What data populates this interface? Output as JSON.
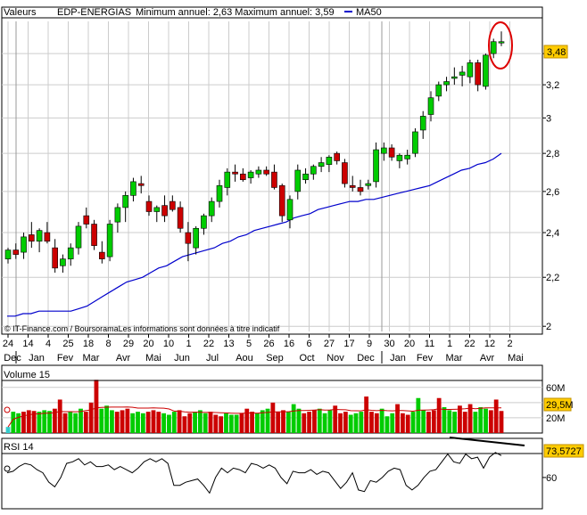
{
  "header": {
    "label": "Valeurs",
    "symbol": "EDP-ENERGIAS",
    "range_text": "Minimum annuel: 2,63 Maximum annuel: 3,59",
    "ma_label": "MA50",
    "ma_color": "#0000cc",
    "credit": "© IT-Finance.com / BoursoramaLes informations sont données à titre indicatif"
  },
  "price_axis": {
    "ticks": [
      "3,4",
      "3,2",
      "3",
      "2,8",
      "2,6",
      "2,4",
      "2,2",
      "2"
    ],
    "last_value": "3,48",
    "last_value_bg": "#ffcc00"
  },
  "x_axis": {
    "days": [
      "24",
      "14",
      "4",
      "25",
      "18",
      "8",
      "29",
      "20",
      "10",
      "1",
      "22",
      "13",
      "5",
      "26",
      "16",
      "6",
      "27",
      "17",
      "9",
      "30",
      "20",
      "11",
      "1",
      "22",
      "12",
      "2"
    ],
    "months": [
      "Dec",
      "Jan",
      "Fev",
      "Mar",
      "Avr",
      "Mai",
      "Jun",
      "Jul",
      "Aou",
      "Sep",
      "Oct",
      "Nov",
      "Dec",
      "Jan",
      "Fev",
      "Mar",
      "Avr",
      "Mai"
    ]
  },
  "volume_panel": {
    "title": "Volume 15",
    "ticks": [
      "60M",
      "40M",
      "20M"
    ],
    "last_value": "29,5M",
    "last_value_bg": "#ffcc00"
  },
  "rsi_panel": {
    "title": "RSI 14",
    "ticks": [
      "60"
    ],
    "last_value": "73,5727",
    "last_value_bg": "#ffcc00"
  },
  "colors": {
    "up": "#00cc00",
    "down": "#cc0000",
    "ma": "#0000cc",
    "grid": "#cccccc",
    "highlight_circle": "#dd0000"
  },
  "chart_data": [
    {
      "type": "candlestick",
      "title": "EDP-ENERGIAS",
      "y_scale": "log",
      "ylim": [
        1.98,
        3.62
      ],
      "x": "weekly candles, Dec to Apr (with future axis through Mai)",
      "candles": [
        [
          2.28,
          2.33,
          2.26,
          2.32
        ],
        [
          2.32,
          2.35,
          2.28,
          2.3
        ],
        [
          2.31,
          2.4,
          2.28,
          2.38
        ],
        [
          2.39,
          2.45,
          2.33,
          2.36
        ],
        [
          2.36,
          2.42,
          2.31,
          2.41
        ],
        [
          2.4,
          2.45,
          2.35,
          2.36
        ],
        [
          2.33,
          2.37,
          2.22,
          2.24
        ],
        [
          2.25,
          2.3,
          2.22,
          2.28
        ],
        [
          2.28,
          2.35,
          2.25,
          2.33
        ],
        [
          2.33,
          2.45,
          2.3,
          2.43
        ],
        [
          2.48,
          2.52,
          2.42,
          2.44
        ],
        [
          2.44,
          2.46,
          2.32,
          2.34
        ],
        [
          2.31,
          2.36,
          2.26,
          2.28
        ],
        [
          2.29,
          2.46,
          2.27,
          2.44
        ],
        [
          2.45,
          2.54,
          2.4,
          2.52
        ],
        [
          2.52,
          2.6,
          2.45,
          2.58
        ],
        [
          2.58,
          2.67,
          2.55,
          2.65
        ],
        [
          2.64,
          2.68,
          2.59,
          2.63
        ],
        [
          2.55,
          2.58,
          2.48,
          2.5
        ],
        [
          2.5,
          2.53,
          2.45,
          2.52
        ],
        [
          2.53,
          2.58,
          2.45,
          2.48
        ],
        [
          2.55,
          2.58,
          2.5,
          2.51
        ],
        [
          2.52,
          2.55,
          2.4,
          2.42
        ],
        [
          2.4,
          2.45,
          2.27,
          2.35
        ],
        [
          2.33,
          2.43,
          2.3,
          2.42
        ],
        [
          2.42,
          2.49,
          2.39,
          2.48
        ],
        [
          2.48,
          2.57,
          2.45,
          2.55
        ],
        [
          2.55,
          2.66,
          2.52,
          2.63
        ],
        [
          2.62,
          2.72,
          2.58,
          2.7
        ],
        [
          2.7,
          2.74,
          2.65,
          2.69
        ],
        [
          2.69,
          2.72,
          2.65,
          2.66
        ],
        [
          2.67,
          2.71,
          2.64,
          2.7
        ],
        [
          2.69,
          2.73,
          2.67,
          2.71
        ],
        [
          2.71,
          2.73,
          2.68,
          2.69
        ],
        [
          2.7,
          2.74,
          2.61,
          2.62
        ],
        [
          2.63,
          2.64,
          2.45,
          2.48
        ],
        [
          2.46,
          2.58,
          2.42,
          2.56
        ],
        [
          2.6,
          2.74,
          2.56,
          2.71
        ],
        [
          2.66,
          2.72,
          2.64,
          2.69
        ],
        [
          2.69,
          2.74,
          2.66,
          2.73
        ],
        [
          2.73,
          2.78,
          2.7,
          2.75
        ],
        [
          2.74,
          2.79,
          2.7,
          2.78
        ],
        [
          2.8,
          2.81,
          2.74,
          2.76
        ],
        [
          2.75,
          2.77,
          2.62,
          2.64
        ],
        [
          2.63,
          2.68,
          2.6,
          2.62
        ],
        [
          2.62,
          2.66,
          2.58,
          2.6
        ],
        [
          2.63,
          2.66,
          2.61,
          2.64
        ],
        [
          2.65,
          2.86,
          2.62,
          2.82
        ],
        [
          2.8,
          2.86,
          2.76,
          2.83
        ],
        [
          2.83,
          2.85,
          2.76,
          2.78
        ],
        [
          2.76,
          2.8,
          2.72,
          2.79
        ],
        [
          2.77,
          2.82,
          2.74,
          2.79
        ],
        [
          2.8,
          2.94,
          2.78,
          2.92
        ],
        [
          2.93,
          3.04,
          2.88,
          3.01
        ],
        [
          3.02,
          3.16,
          2.98,
          3.12
        ],
        [
          3.13,
          3.22,
          3.1,
          3.2
        ],
        [
          3.2,
          3.25,
          3.16,
          3.22
        ],
        [
          3.24,
          3.31,
          3.2,
          3.25
        ],
        [
          3.26,
          3.32,
          3.19,
          3.28
        ],
        [
          3.25,
          3.36,
          3.21,
          3.34
        ],
        [
          3.34,
          3.36,
          3.16,
          3.2
        ],
        [
          3.19,
          3.4,
          3.17,
          3.39
        ],
        [
          3.4,
          3.5,
          3.37,
          3.48
        ],
        [
          3.48,
          3.55,
          3.45,
          3.48
        ]
      ],
      "ma50": [
        2.04,
        2.04,
        2.05,
        2.05,
        2.06,
        2.06,
        2.06,
        2.06,
        2.06,
        2.07,
        2.08,
        2.1,
        2.12,
        2.14,
        2.16,
        2.18,
        2.19,
        2.2,
        2.22,
        2.24,
        2.25,
        2.27,
        2.29,
        2.3,
        2.31,
        2.32,
        2.33,
        2.35,
        2.36,
        2.38,
        2.39,
        2.41,
        2.42,
        2.43,
        2.44,
        2.45,
        2.47,
        2.48,
        2.49,
        2.51,
        2.52,
        2.53,
        2.54,
        2.55,
        2.55,
        2.56,
        2.56,
        2.57,
        2.58,
        2.59,
        2.6,
        2.61,
        2.62,
        2.63,
        2.65,
        2.67,
        2.69,
        2.71,
        2.72,
        2.74,
        2.75,
        2.77,
        2.8
      ]
    },
    {
      "type": "bar",
      "title": "Volume 15",
      "unit": "M",
      "ylim": [
        0,
        75
      ],
      "values": [
        8,
        28,
        26,
        28,
        30,
        29,
        28,
        30,
        29,
        32,
        44,
        26,
        28,
        26,
        32,
        28,
        40,
        70,
        32,
        36,
        30,
        28,
        30,
        32,
        26,
        28,
        26,
        28,
        30,
        28,
        26,
        24,
        28,
        30,
        22,
        26,
        28,
        30,
        26,
        28,
        24,
        22,
        26,
        24,
        24,
        26,
        32,
        28,
        26,
        30,
        32,
        40,
        28,
        30,
        28,
        38,
        32,
        26,
        28,
        30,
        32,
        26,
        30,
        36,
        26,
        28,
        24,
        26,
        28,
        48,
        28,
        26,
        32,
        22,
        26,
        38,
        26,
        24,
        28,
        46,
        30,
        28,
        30,
        46,
        34,
        30,
        28,
        36,
        28,
        38,
        28,
        34,
        32,
        30,
        44,
        29
      ],
      "moving_average_color": "#cc0000"
    },
    {
      "type": "line",
      "title": "RSI 14",
      "ylim": [
        40,
        85
      ],
      "last_value": 73.5727,
      "values": [
        63,
        64,
        67,
        69,
        68,
        65,
        63,
        57,
        54,
        60,
        69,
        70,
        72,
        68,
        70,
        67,
        67,
        68,
        65,
        67,
        65,
        63,
        66,
        70,
        72,
        70,
        72,
        69,
        55,
        55,
        57,
        58,
        59,
        55,
        50,
        60,
        66,
        63,
        66,
        65,
        63,
        69,
        68,
        66,
        68,
        66,
        60,
        56,
        64,
        63,
        63,
        65,
        62,
        64,
        63,
        58,
        53,
        57,
        63,
        52,
        51,
        58,
        57,
        60,
        64,
        66,
        65,
        55,
        52,
        55,
        60,
        64,
        65,
        70,
        75,
        70,
        69,
        75,
        72,
        73,
        66,
        73,
        76,
        74
      ]
    }
  ]
}
